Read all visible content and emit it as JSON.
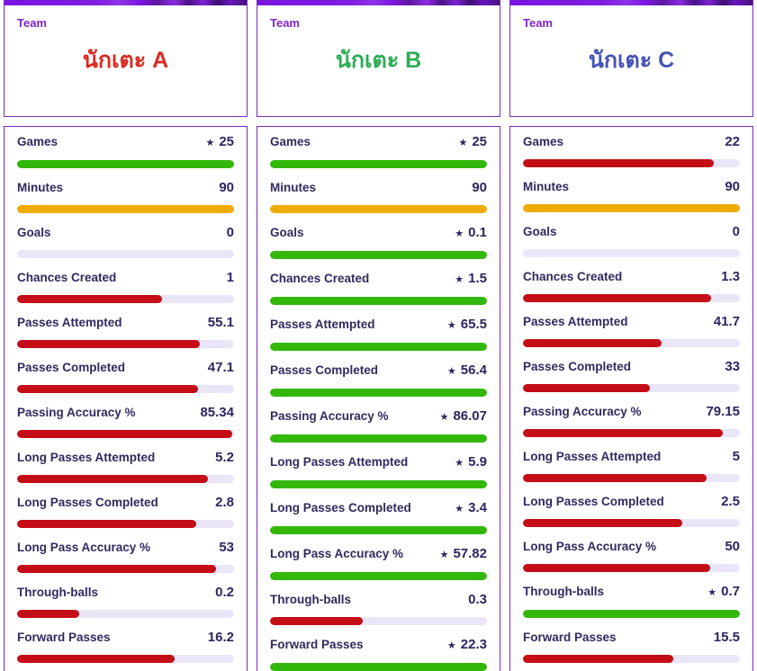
{
  "colors": {
    "green": "#33b70b",
    "red": "#c40d17",
    "yellow": "#f0ab00",
    "track": "#eae5f7",
    "label_text": "#32295e",
    "team_label_text": "#8026c9",
    "card_border": "#7d2ab8",
    "stripe_purple": "#7a15de"
  },
  "star_glyph": "★",
  "team_label": "Team",
  "stat_labels": [
    "Games",
    "Minutes",
    "Goals",
    "Chances Created",
    "Passes Attempted",
    "Passes Completed",
    "Passing Accuracy %",
    "Long Passes Attempted",
    "Long Passes Completed",
    "Long Pass Accuracy %",
    "Through-balls",
    "Forward Passes"
  ],
  "players": [
    {
      "name": "นักเตะ A",
      "name_color": "#d92b21",
      "stats": [
        {
          "value": "25",
          "star": true,
          "color": "green",
          "pct": 100
        },
        {
          "value": "90",
          "star": false,
          "color": "yellow",
          "pct": 100
        },
        {
          "value": "0",
          "star": false,
          "color": "track",
          "pct": 0
        },
        {
          "value": "1",
          "star": false,
          "color": "red",
          "pct": 66.7
        },
        {
          "value": "55.1",
          "star": false,
          "color": "red",
          "pct": 84.1
        },
        {
          "value": "47.1",
          "star": false,
          "color": "red",
          "pct": 83.5
        },
        {
          "value": "85.34",
          "star": false,
          "color": "red",
          "pct": 99.2
        },
        {
          "value": "5.2",
          "star": false,
          "color": "red",
          "pct": 88.1
        },
        {
          "value": "2.8",
          "star": false,
          "color": "red",
          "pct": 82.4
        },
        {
          "value": "53",
          "star": false,
          "color": "red",
          "pct": 91.7
        },
        {
          "value": "0.2",
          "star": false,
          "color": "red",
          "pct": 28.6
        },
        {
          "value": "16.2",
          "star": false,
          "color": "red",
          "pct": 72.7
        }
      ]
    },
    {
      "name": "นักเตะ B",
      "name_color": "#2bae55",
      "stats": [
        {
          "value": "25",
          "star": true,
          "color": "green",
          "pct": 100
        },
        {
          "value": "90",
          "star": false,
          "color": "yellow",
          "pct": 100
        },
        {
          "value": "0.1",
          "star": true,
          "color": "green",
          "pct": 100
        },
        {
          "value": "1.5",
          "star": true,
          "color": "green",
          "pct": 100
        },
        {
          "value": "65.5",
          "star": true,
          "color": "green",
          "pct": 100
        },
        {
          "value": "56.4",
          "star": true,
          "color": "green",
          "pct": 100
        },
        {
          "value": "86.07",
          "star": true,
          "color": "green",
          "pct": 100
        },
        {
          "value": "5.9",
          "star": true,
          "color": "green",
          "pct": 100
        },
        {
          "value": "3.4",
          "star": true,
          "color": "green",
          "pct": 100
        },
        {
          "value": "57.82",
          "star": true,
          "color": "green",
          "pct": 100
        },
        {
          "value": "0.3",
          "star": false,
          "color": "red",
          "pct": 42.9
        },
        {
          "value": "22.3",
          "star": true,
          "color": "green",
          "pct": 100
        }
      ]
    },
    {
      "name": "นักเตะ C",
      "name_color": "#4453b5",
      "stats": [
        {
          "value": "22",
          "star": false,
          "color": "red",
          "pct": 88
        },
        {
          "value": "90",
          "star": false,
          "color": "yellow",
          "pct": 100
        },
        {
          "value": "0",
          "star": false,
          "color": "track",
          "pct": 0
        },
        {
          "value": "1.3",
          "star": false,
          "color": "red",
          "pct": 86.7
        },
        {
          "value": "41.7",
          "star": false,
          "color": "red",
          "pct": 63.7
        },
        {
          "value": "33",
          "star": false,
          "color": "red",
          "pct": 58.5
        },
        {
          "value": "79.15",
          "star": false,
          "color": "red",
          "pct": 92
        },
        {
          "value": "5",
          "star": false,
          "color": "red",
          "pct": 84.7
        },
        {
          "value": "2.5",
          "star": false,
          "color": "red",
          "pct": 73.5
        },
        {
          "value": "50",
          "star": false,
          "color": "red",
          "pct": 86.5
        },
        {
          "value": "0.7",
          "star": true,
          "color": "green",
          "pct": 100
        },
        {
          "value": "15.5",
          "star": false,
          "color": "red",
          "pct": 69.5
        }
      ]
    }
  ],
  "chart_data": {
    "type": "bar",
    "categories": [
      "Games",
      "Minutes",
      "Goals",
      "Chances Created",
      "Passes Attempted",
      "Passes Completed",
      "Passing Accuracy %",
      "Long Passes Attempted",
      "Long Passes Completed",
      "Long Pass Accuracy %",
      "Through-balls",
      "Forward Passes"
    ],
    "series": [
      {
        "name": "นักเตะ A",
        "values": [
          25,
          90,
          0,
          1,
          55.1,
          47.1,
          85.34,
          5.2,
          2.8,
          53,
          0.2,
          16.2
        ]
      },
      {
        "name": "นักเตะ B",
        "values": [
          25,
          90,
          0.1,
          1.5,
          65.5,
          56.4,
          86.07,
          5.9,
          3.4,
          57.82,
          0.3,
          22.3
        ]
      },
      {
        "name": "นักเตะ C",
        "values": [
          22,
          90,
          0,
          1.3,
          41.7,
          33,
          79.15,
          5,
          2.5,
          50,
          0.7,
          15.5
        ]
      }
    ],
    "legend_position": "none",
    "grid": false,
    "bar_scaling": "each category scaled to max value across players; best value marked with star and green bar, ties on Minutes yellow, zero values empty track"
  }
}
